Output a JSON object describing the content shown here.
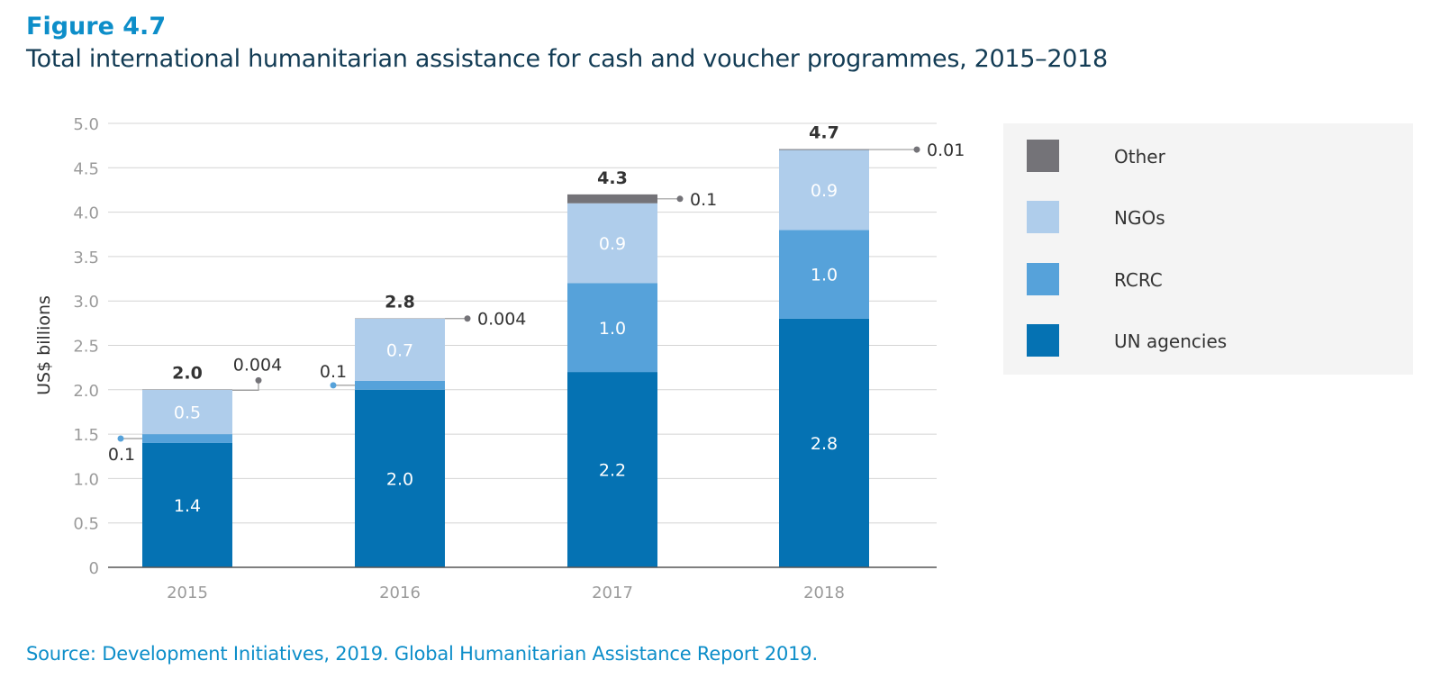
{
  "figure": {
    "label": "Figure 4.7",
    "title": "Total international humanitarian assistance for cash and voucher programmes, 2015–2018"
  },
  "source": "Source: Development Initiatives, 2019. Global Humanitarian Assistance Report 2019.",
  "colors": {
    "other": "#747378",
    "ngos": "#afcdeb",
    "rcrc": "#56a2da",
    "un_agencies": "#0572b3",
    "title": "#133c55",
    "accent": "#0d8ec9"
  },
  "legend": [
    {
      "name": "Other",
      "color": "#747378"
    },
    {
      "name": "NGOs",
      "color": "#afcdeb"
    },
    {
      "name": "RCRC",
      "color": "#56a2da"
    },
    {
      "name": "UN agencies",
      "color": "#0572b3"
    }
  ],
  "chart_data": {
    "type": "bar",
    "stacked": true,
    "categories": [
      "2015",
      "2016",
      "2017",
      "2018"
    ],
    "ylabel": "US$ billions",
    "ylim": [
      0,
      5.0
    ],
    "yticks": [
      "0",
      "0.5",
      "1.0",
      "1.5",
      "2.0",
      "2.5",
      "3.0",
      "3.5",
      "4.0",
      "4.5",
      "5.0"
    ],
    "grid": true,
    "legend_position": "right",
    "series": [
      {
        "name": "UN agencies",
        "values": [
          1.4,
          2.0,
          2.2,
          2.8
        ],
        "labels": [
          "1.4",
          "2.0",
          "2.2",
          "2.8"
        ]
      },
      {
        "name": "RCRC",
        "values": [
          0.1,
          0.1,
          1.0,
          1.0
        ],
        "labels": [
          "0.1",
          "0.1",
          "1.0",
          "1.0"
        ]
      },
      {
        "name": "NGOs",
        "values": [
          0.5,
          0.7,
          0.9,
          0.9
        ],
        "labels": [
          "0.5",
          "0.7",
          "0.9",
          "0.9"
        ]
      },
      {
        "name": "Other",
        "values": [
          0.004,
          0.004,
          0.1,
          0.01
        ],
        "labels": [
          "0.004",
          "0.004",
          "0.1",
          "0.01"
        ]
      }
    ],
    "totals": [
      "2.0",
      "2.8",
      "4.3",
      "4.7"
    ]
  }
}
